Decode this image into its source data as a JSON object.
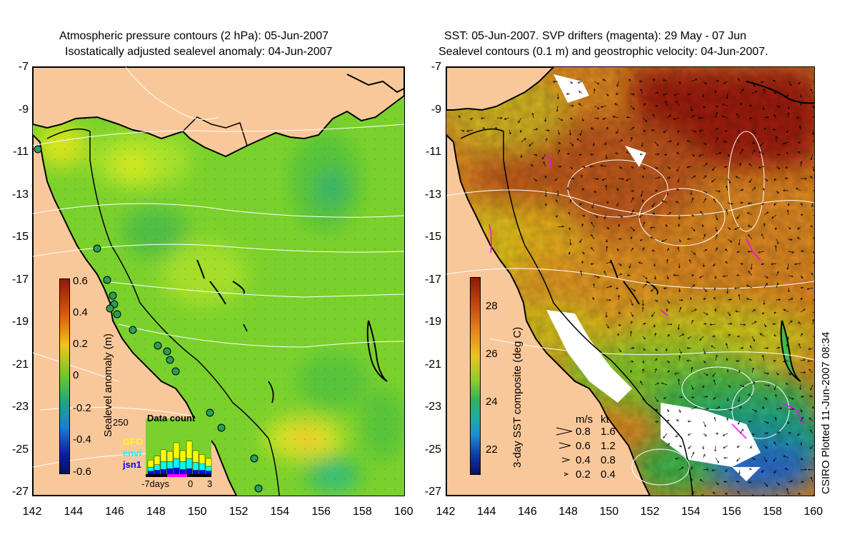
{
  "left_panel": {
    "title_line1": "Atmospheric pressure contours (2 hPa): 05-Jun-2007",
    "title_line2": "Isostatically adjusted sealevel anomaly: 04-Jun-2007",
    "colorbar_label": "Sealevel anomaly (m)",
    "colorbar_ticks": [
      "0.6",
      "0.4",
      "0.2",
      "0",
      "-0.2",
      "-0.4",
      "-0.6"
    ],
    "inset": {
      "title": "Data count",
      "ymax_label": "250",
      "series": [
        {
          "name": "GFO",
          "color": "#ffff00"
        },
        {
          "name": "envi",
          "color": "#00ffff"
        },
        {
          "name": "jsn1",
          "color": "#0000ff"
        }
      ],
      "xlabels": [
        "-7days",
        "0",
        "3"
      ]
    }
  },
  "right_panel": {
    "title_line1": "SST: 05-Jun-2007. SVP drifters (magenta): 29 May - 07 Jun",
    "title_line2": "Sealevel contours (0.1 m) and geostrophic velocity: 04-Jun-2007.",
    "colorbar_label": "3-day SST composite (deg C)",
    "colorbar_ticks": [
      "28",
      "26",
      "24",
      "22"
    ],
    "velocity_legend": {
      "header_ms": "m/s",
      "header_kt": "kt",
      "rows": [
        {
          "ms": "0.8",
          "kt": "1.6"
        },
        {
          "ms": "0.6",
          "kt": "1.2"
        },
        {
          "ms": "0.4",
          "kt": "0.8"
        },
        {
          "ms": "0.2",
          "kt": "0.4"
        }
      ]
    },
    "credit": "CSIRO Plotted 11-Jun-2007 08:34"
  },
  "axes": {
    "y_ticks": [
      "-7",
      "-9",
      "-11",
      "-13",
      "-15",
      "-17",
      "-19",
      "-21",
      "-23",
      "-25",
      "-27"
    ],
    "x_ticks": [
      "142",
      "144",
      "146",
      "148",
      "150",
      "152",
      "154",
      "156",
      "158",
      "160"
    ]
  },
  "colors": {
    "land": "#f9c89a",
    "coast": "#000000",
    "drifter": "#ff00ff",
    "tide_gauge": "#2a9d5a"
  }
}
